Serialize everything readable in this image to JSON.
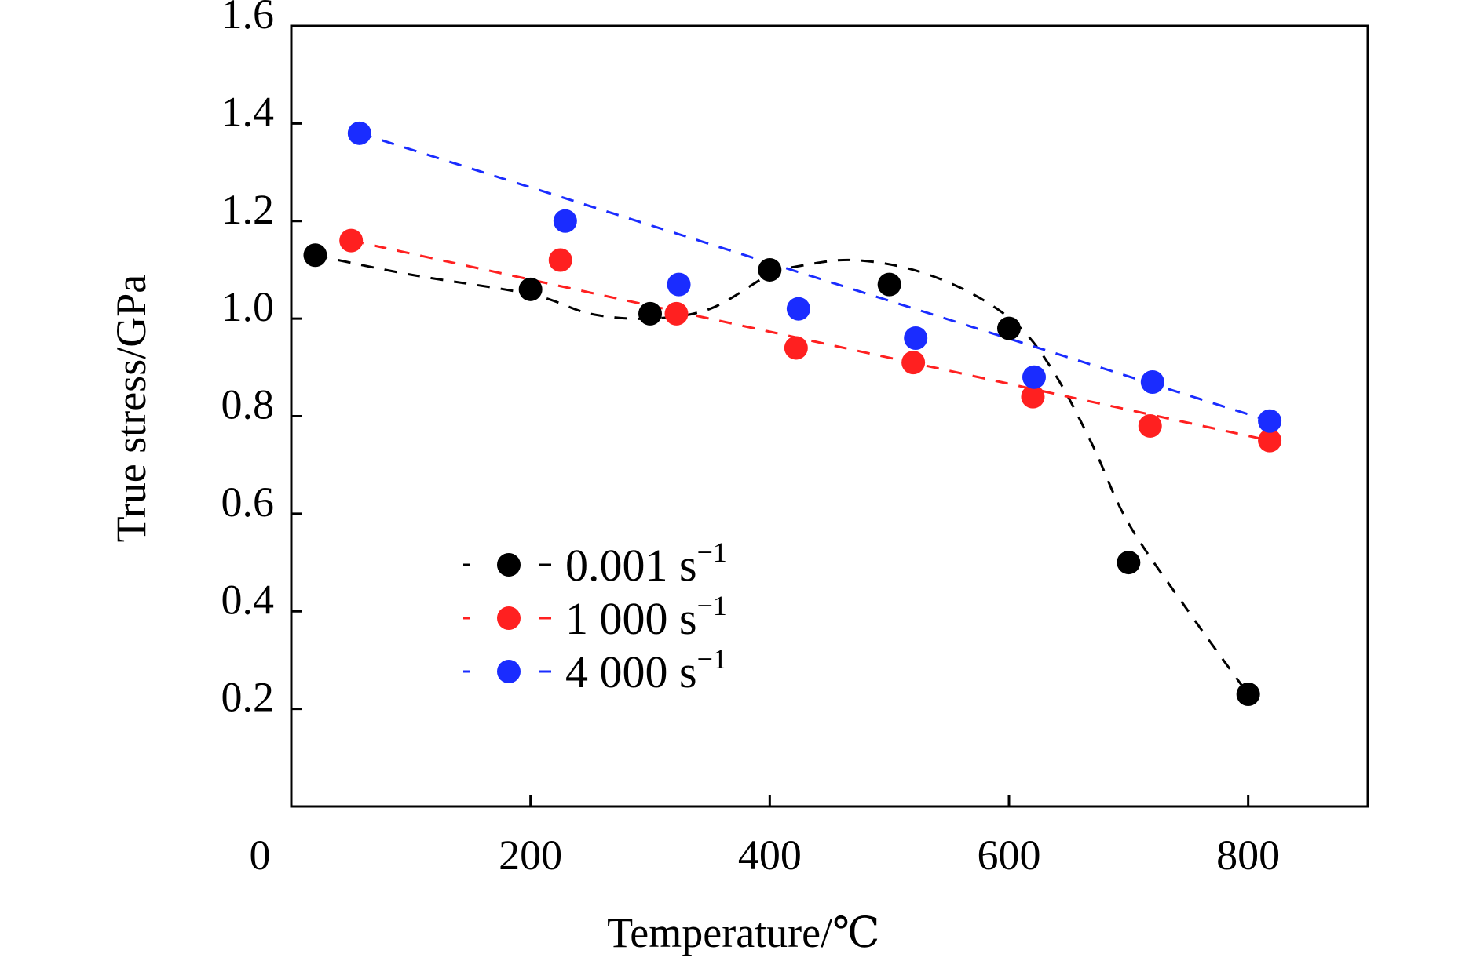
{
  "chart_data": {
    "type": "scatter",
    "title": "",
    "xlabel": "Temperature/℃",
    "ylabel": "True stress/GPa",
    "xlim": [
      0,
      900
    ],
    "ylim": [
      0,
      1.6
    ],
    "xticks": [
      0,
      200,
      400,
      600,
      800
    ],
    "xtick_labels": [
      "0",
      "200",
      "400",
      "600",
      "800"
    ],
    "yticks": [
      0.2,
      0.4,
      0.6,
      0.8,
      1.0,
      1.2,
      1.4,
      1.6
    ],
    "ytick_labels": [
      "0.2",
      "0.4",
      "0.6",
      "0.8",
      "1.0",
      "1.2",
      "1.4",
      "1.6"
    ],
    "grid": false,
    "legend_position": "center-left",
    "series": [
      {
        "name": "0.001 s⁻¹",
        "label_main": "0.001 s",
        "label_sup": "−1",
        "color": "#000000",
        "x": [
          20,
          200,
          300,
          400,
          500,
          600,
          700,
          800
        ],
        "y": [
          1.13,
          1.06,
          1.01,
          1.1,
          1.07,
          0.98,
          0.5,
          0.23
        ],
        "trend_x": [
          20,
          100,
          200,
          250,
          300,
          350,
          400,
          430,
          470,
          520,
          570,
          610,
          640,
          670,
          700,
          750,
          800
        ],
        "trend_y": [
          1.13,
          1.09,
          1.05,
          1.01,
          1.0,
          1.02,
          1.09,
          1.11,
          1.12,
          1.1,
          1.05,
          0.98,
          0.88,
          0.74,
          0.58,
          0.4,
          0.23
        ]
      },
      {
        "name": "1 000 s⁻¹",
        "label_main": "1 000 s",
        "label_sup": "−1",
        "color": "#ff2020",
        "x": [
          50,
          225,
          322,
          422,
          520,
          620,
          718,
          818
        ],
        "y": [
          1.16,
          1.12,
          1.01,
          0.94,
          0.91,
          0.84,
          0.78,
          0.75
        ],
        "trend_x": [
          50,
          818
        ],
        "trend_y": [
          1.16,
          0.75
        ]
      },
      {
        "name": "4 000 s⁻¹",
        "label_main": "4 000 s",
        "label_sup": "−1",
        "color": "#1a2cff",
        "x": [
          57,
          229,
          324,
          424,
          522,
          621,
          720,
          818
        ],
        "y": [
          1.38,
          1.2,
          1.07,
          1.02,
          0.96,
          0.88,
          0.87,
          0.79
        ],
        "trend_x": [
          57,
          818
        ],
        "trend_y": [
          1.38,
          0.79
        ]
      }
    ]
  }
}
